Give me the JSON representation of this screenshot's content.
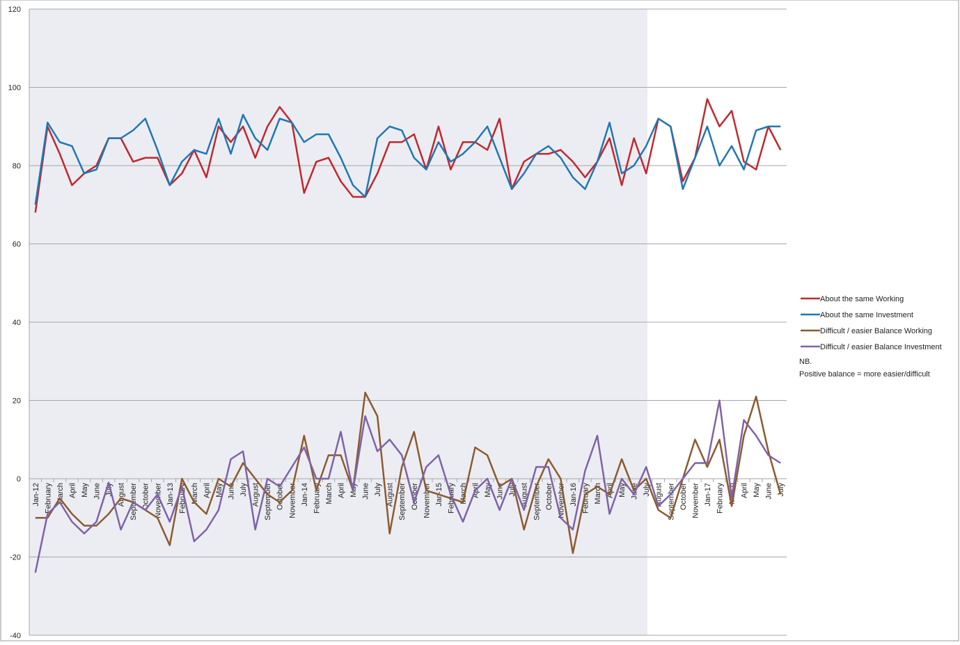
{
  "chart_data": {
    "type": "line",
    "categories": [
      "Jan-12",
      "February",
      "March",
      "April",
      "May",
      "June",
      "July",
      "August",
      "September",
      "October",
      "November",
      "Jan-13",
      "February",
      "March",
      "April",
      "May",
      "June",
      "July",
      "August",
      "September",
      "October",
      "November",
      "Jan-14",
      "February",
      "March",
      "April",
      "May",
      "June",
      "July",
      "August",
      "September",
      "October",
      "November",
      "Jan-15",
      "February",
      "March",
      "April",
      "May",
      "June",
      "July",
      "August",
      "September",
      "October",
      "November",
      "Jan-16",
      "February",
      "March",
      "April",
      "May",
      "June",
      "July",
      "August",
      "September",
      "October",
      "November",
      "Jan-17",
      "February",
      "March",
      "April",
      "May",
      "June",
      "July"
    ],
    "series": [
      {
        "name": "About the same Working",
        "color": "#c0282d",
        "values": [
          68,
          90,
          83,
          75,
          78,
          80,
          87,
          87,
          81,
          82,
          82,
          75,
          78,
          84,
          77,
          90,
          86,
          90,
          82,
          90,
          95,
          91,
          73,
          81,
          82,
          76,
          72,
          72,
          78,
          86,
          86,
          88,
          79,
          90,
          79,
          86,
          86,
          84,
          92,
          74,
          81,
          83,
          83,
          84,
          81,
          77,
          81,
          87,
          75,
          87,
          78,
          92,
          90,
          76,
          82,
          97,
          90,
          94,
          81,
          79,
          90,
          84
        ]
      },
      {
        "name": "About the same Investment",
        "color": "#1f77b4",
        "values": [
          70,
          91,
          86,
          85,
          78,
          79,
          87,
          87,
          89,
          92,
          84,
          75,
          81,
          84,
          83,
          92,
          83,
          93,
          87,
          84,
          92,
          91,
          86,
          88,
          88,
          82,
          75,
          72,
          87,
          90,
          89,
          82,
          79,
          86,
          81,
          83,
          86,
          90,
          82,
          74,
          78,
          83,
          85,
          82,
          77,
          74,
          81,
          91,
          78,
          80,
          85,
          92,
          90,
          74,
          82,
          90,
          80,
          85,
          79,
          89,
          90,
          90
        ]
      },
      {
        "name": "Difficult / easier Balance Working",
        "color": "#8c5a2e",
        "values": [
          -10,
          -10,
          -5,
          -9,
          -12,
          -12,
          -9,
          -5,
          -6,
          -8,
          -10,
          -17,
          0,
          -6,
          -9,
          0,
          -2,
          4,
          0,
          -4,
          -6,
          -3,
          11,
          -3,
          6,
          6,
          -3,
          22,
          16,
          -14,
          3,
          12,
          -3,
          -4,
          -5,
          -6,
          8,
          6,
          -2,
          0,
          -13,
          -2,
          5,
          0,
          -19,
          -4,
          -2,
          -4,
          5,
          -3,
          0,
          -8,
          -10,
          0,
          10,
          3,
          10,
          -7,
          11,
          21,
          7,
          -4
        ]
      },
      {
        "name": "Difficult / easier Balance Investment",
        "color": "#7f62a8",
        "values": [
          -24,
          -9,
          -6,
          -11,
          -14,
          -11,
          -1,
          -13,
          -6,
          -8,
          -4,
          -11,
          -2,
          -16,
          -13,
          -8,
          5,
          7,
          -13,
          0,
          -2,
          3,
          8,
          0,
          0,
          12,
          -3,
          16,
          7,
          10,
          6,
          -6,
          3,
          6,
          -4,
          -11,
          -3,
          0,
          -8,
          0,
          -8,
          3,
          3,
          -10,
          -13,
          2,
          11,
          -9,
          0,
          -4,
          3,
          -7,
          -4,
          0,
          4,
          4,
          20,
          -5,
          15,
          11,
          6,
          4
        ]
      }
    ],
    "ylim": [
      -40,
      120
    ],
    "yticks": [
      -40,
      -20,
      0,
      20,
      40,
      60,
      80,
      100,
      120
    ],
    "grid": true,
    "annotations": [
      "NB.",
      "Positive balance = more easier/difficult"
    ]
  }
}
